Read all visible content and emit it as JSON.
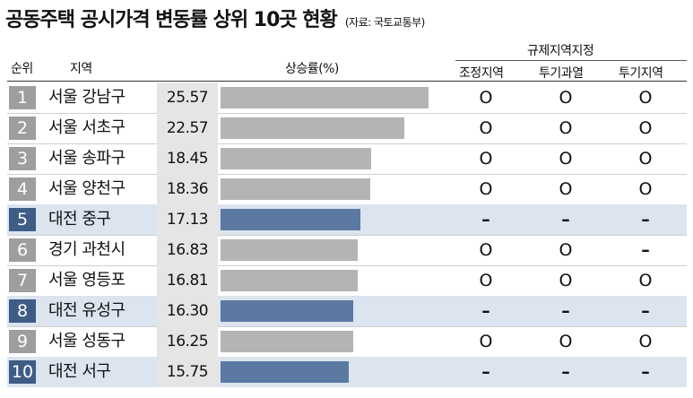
{
  "title": "공동주택 공시가격 변동률 상위 10곳 현황",
  "source": "(자료: 국토교통부)",
  "headers": {
    "rank": "순위",
    "region": "지역",
    "rate": "상승률(%)",
    "group": "규제지역지정",
    "zone1": "조정지역",
    "zone2": "투기과열",
    "zone3": "투기지역"
  },
  "colors": {
    "bar_default": "#b4b4b4",
    "bar_highlight": "#5b79a3",
    "rank_default": "#9e9e9e",
    "rank_highlight": "#3e5c86",
    "row_highlight": "#dbe4ef"
  },
  "chart_data": {
    "type": "bar",
    "title": "공동주택 공시가격 변동률 상위 10곳 현황",
    "ylabel": "상승률(%)",
    "categories": [
      "서울 강남구",
      "서울 서초구",
      "서울 송파구",
      "서울 양천구",
      "대전 중구",
      "경기 과천시",
      "서울 영등포",
      "대전 유성구",
      "서울 성동구",
      "대전 서구"
    ],
    "values": [
      25.57,
      22.57,
      18.45,
      18.36,
      17.13,
      16.83,
      16.81,
      16.3,
      16.25,
      15.75
    ],
    "labels": [
      "25.57",
      "22.57",
      "18.45",
      "18.36",
      "17.13",
      "16.83",
      "16.81",
      "16.30",
      "16.25",
      "15.75"
    ],
    "ylim": [
      0,
      33
    ],
    "rows": [
      {
        "rank": "1",
        "region": "서울 강남구",
        "value": 25.57,
        "highlight": false,
        "zones": [
          "O",
          "O",
          "O"
        ]
      },
      {
        "rank": "2",
        "region": "서울 서초구",
        "value": 22.57,
        "highlight": false,
        "zones": [
          "O",
          "O",
          "O"
        ]
      },
      {
        "rank": "3",
        "region": "서울 송파구",
        "value": 18.45,
        "highlight": false,
        "zones": [
          "O",
          "O",
          "O"
        ]
      },
      {
        "rank": "4",
        "region": "서울 양천구",
        "value": 18.36,
        "highlight": false,
        "zones": [
          "O",
          "O",
          "O"
        ]
      },
      {
        "rank": "5",
        "region": "대전 중구",
        "value": 17.13,
        "highlight": true,
        "zones": [
          "–",
          "–",
          "–"
        ]
      },
      {
        "rank": "6",
        "region": "경기 과천시",
        "value": 16.83,
        "highlight": false,
        "zones": [
          "O",
          "O",
          "–"
        ]
      },
      {
        "rank": "7",
        "region": "서울 영등포",
        "value": 16.81,
        "highlight": false,
        "zones": [
          "O",
          "O",
          "O"
        ]
      },
      {
        "rank": "8",
        "region": "대전 유성구",
        "value": 16.3,
        "highlight": true,
        "zones": [
          "–",
          "–",
          "–"
        ]
      },
      {
        "rank": "9",
        "region": "서울 성동구",
        "value": 16.25,
        "highlight": false,
        "zones": [
          "O",
          "O",
          "O"
        ]
      },
      {
        "rank": "10",
        "region": "대전 서구",
        "value": 15.75,
        "highlight": true,
        "zones": [
          "–",
          "–",
          "–"
        ]
      }
    ]
  }
}
